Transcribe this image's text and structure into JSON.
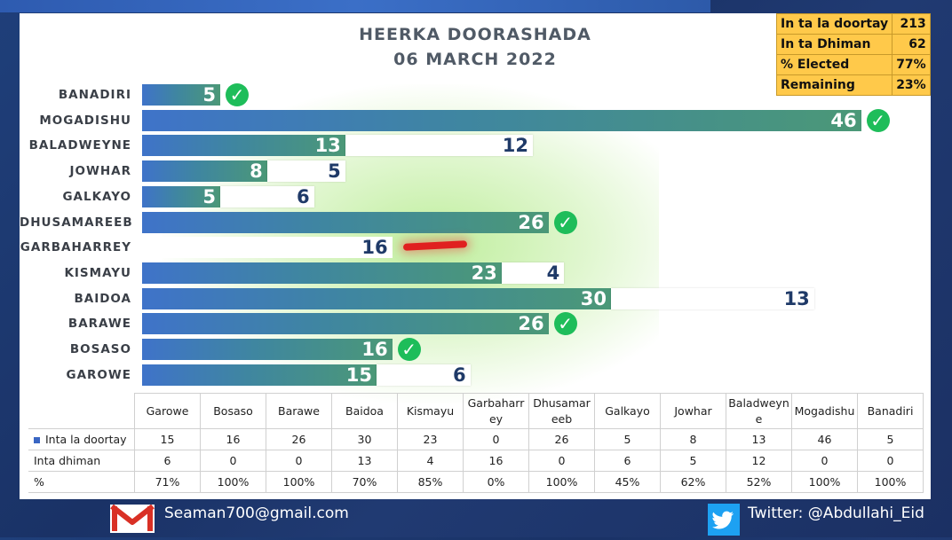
{
  "title_line1": "HEERKA DOORASHADA",
  "title_line2": "06 MARCH 2022",
  "stats": [
    {
      "label": "In ta la doortay",
      "value": "213"
    },
    {
      "label": "In ta Dhiman",
      "value": "62"
    },
    {
      "label": "% Elected",
      "value": "77%"
    },
    {
      "label": "Remaining",
      "value": "23%"
    }
  ],
  "chart_data": {
    "type": "bar",
    "orientation": "horizontal",
    "stacked": true,
    "categories": [
      "BANADIRI",
      "MOGADISHU",
      "BALADWEYNE",
      "JOWHAR",
      "GALKAYO",
      "DHUSAMAREEB",
      "GARBAHARREY",
      "KISMAYU",
      "BAIDOA",
      "BARAWE",
      "BOSASO",
      "GAROWE"
    ],
    "series": [
      {
        "name": "Inta la doortay",
        "values": [
          5,
          46,
          13,
          8,
          5,
          26,
          0,
          23,
          30,
          26,
          16,
          15
        ],
        "color": "#3f73c9"
      },
      {
        "name": "Inta dhiman",
        "values": [
          0,
          0,
          12,
          5,
          6,
          0,
          16,
          4,
          13,
          0,
          0,
          6
        ],
        "color": "#ffffff"
      }
    ],
    "completed": [
      true,
      true,
      false,
      false,
      false,
      true,
      false,
      false,
      false,
      true,
      true,
      false
    ]
  },
  "table": {
    "header_cells": [
      "Garowe",
      "Bosaso",
      "Barawe",
      "Baidoa",
      "Kismayu",
      "Garbaharr\ney",
      "Dhusamar\neeb",
      "Galkayo",
      "Jowhar",
      "Baladweyn\ne",
      "Mogadishu",
      "Banadiri"
    ],
    "rows": [
      {
        "label": "Inta la doortay",
        "legend_color": "#3a66c3",
        "cells": [
          "15",
          "16",
          "26",
          "30",
          "23",
          "0",
          "26",
          "5",
          "8",
          "13",
          "46",
          "5"
        ]
      },
      {
        "label": "Inta dhiman",
        "cells": [
          "6",
          "0",
          "0",
          "13",
          "4",
          "16",
          "0",
          "6",
          "5",
          "12",
          "0",
          "0"
        ]
      },
      {
        "label": "%",
        "cells": [
          "71%",
          "100%",
          "100%",
          "70%",
          "85%",
          "0%",
          "100%",
          "45%",
          "62%",
          "52%",
          "100%",
          "100%"
        ]
      }
    ]
  },
  "footer": {
    "email": "Seaman700@gmail.com",
    "twitter": "Twitter: @Abdullahi_Eid"
  },
  "icons": {
    "check": "check-circle-icon",
    "mail": "gmail-icon",
    "twitter": "twitter-bird-icon"
  }
}
